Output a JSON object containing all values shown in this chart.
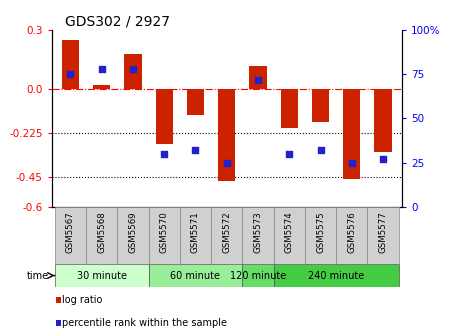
{
  "title": "GDS302 / 2927",
  "samples": [
    "GSM5567",
    "GSM5568",
    "GSM5569",
    "GSM5570",
    "GSM5571",
    "GSM5572",
    "GSM5573",
    "GSM5574",
    "GSM5575",
    "GSM5576",
    "GSM5577"
  ],
  "log_ratios": [
    0.25,
    0.02,
    0.18,
    -0.28,
    -0.13,
    -0.47,
    0.12,
    -0.2,
    -0.17,
    -0.46,
    -0.32
  ],
  "percentiles": [
    75,
    78,
    78,
    30,
    32,
    25,
    72,
    30,
    32,
    25,
    27
  ],
  "bar_color": "#cc2200",
  "dot_color": "#2222cc",
  "ylim_left": [
    -0.6,
    0.3
  ],
  "ylim_right": [
    0,
    100
  ],
  "yticks_left": [
    0.3,
    0.0,
    -0.225,
    -0.45,
    -0.6
  ],
  "yticks_right": [
    100,
    75,
    50,
    25,
    0
  ],
  "time_groups": [
    {
      "label": "30 minute",
      "start": 0,
      "end": 3,
      "color": "#ccffcc"
    },
    {
      "label": "60 minute",
      "start": 3,
      "end": 6,
      "color": "#99ee99"
    },
    {
      "label": "120 minute",
      "start": 6,
      "end": 7,
      "color": "#66dd66"
    },
    {
      "label": "240 minute",
      "start": 7,
      "end": 11,
      "color": "#44cc44"
    }
  ],
  "legend_log_label": "log ratio",
  "legend_pct_label": "percentile rank within the sample",
  "tick_fontsize": 7.5,
  "bar_width": 0.55
}
